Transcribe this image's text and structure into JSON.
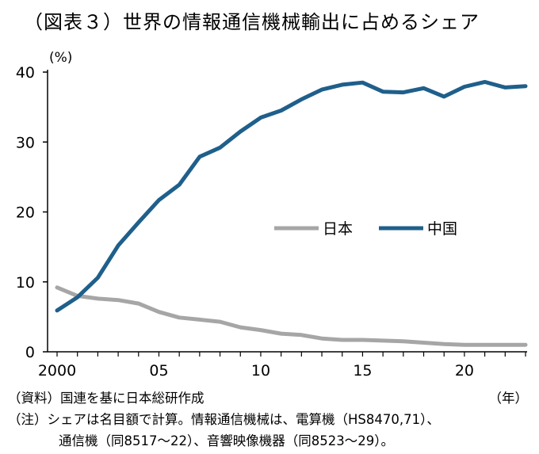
{
  "title": "（図表３）世界の情報通信機械輸出に占めるシェア",
  "notes": {
    "source": "（資料）国連を基に日本総研作成",
    "note_line1": "（注）シェアは名目額で計算。情報通信機械は、電算機（HS8470,71）、",
    "note_line2": "通信機（同8517～22）、音響映像機器（同8523～29）。"
  },
  "chart_data": {
    "type": "line",
    "title": "（図表３）世界の情報通信機械輸出に占めるシェア",
    "y_unit_label": "(%)",
    "x_unit_label": "（年）",
    "xlim": [
      2000,
      2023
    ],
    "ylim": [
      0,
      40
    ],
    "y_ticks": [
      0,
      10,
      20,
      30,
      40
    ],
    "x_ticks": [
      {
        "value": 2000,
        "label": "2000"
      },
      {
        "value": 2005,
        "label": "05"
      },
      {
        "value": 2010,
        "label": "10"
      },
      {
        "value": 2015,
        "label": "15"
      },
      {
        "value": 2020,
        "label": "20"
      }
    ],
    "grid": false,
    "legend_placement": "middle-right",
    "x": [
      2000,
      2001,
      2002,
      2003,
      2004,
      2005,
      2006,
      2007,
      2008,
      2009,
      2010,
      2011,
      2012,
      2013,
      2014,
      2015,
      2016,
      2017,
      2018,
      2019,
      2020,
      2021,
      2022,
      2023
    ],
    "series": [
      {
        "name": "日本",
        "color": "#a6a6a6",
        "values": [
          9.2,
          8.0,
          7.6,
          7.4,
          6.9,
          5.7,
          4.9,
          4.6,
          4.3,
          3.5,
          3.1,
          2.6,
          2.4,
          1.9,
          1.7,
          1.7,
          1.6,
          1.5,
          1.3,
          1.1,
          1.0,
          1.0,
          1.0,
          1.0
        ]
      },
      {
        "name": "中国",
        "color": "#1f5f8b",
        "values": [
          5.9,
          7.8,
          10.6,
          15.2,
          18.5,
          21.7,
          23.9,
          27.9,
          29.2,
          31.5,
          33.5,
          34.5,
          36.1,
          37.5,
          38.2,
          38.5,
          37.2,
          37.1,
          37.7,
          36.5,
          37.9,
          38.6,
          37.8,
          38.0
        ]
      }
    ]
  }
}
